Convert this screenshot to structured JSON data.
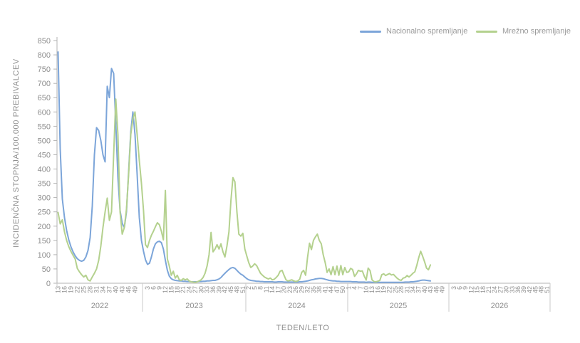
{
  "chart_data": {
    "type": "line",
    "title": "",
    "legend_position": "top-right",
    "grid": false,
    "y_axis": {
      "title": "INCIDENČNA STOPNJA/100.000 PREBIVALCEV",
      "min": 0,
      "max": 850,
      "tick_step": 50,
      "ticks": [
        0,
        50,
        100,
        150,
        200,
        250,
        300,
        350,
        400,
        450,
        500,
        550,
        600,
        650,
        700,
        750,
        800,
        850
      ]
    },
    "x_axis": {
      "title": "TEDEN/LETO",
      "unit": "week",
      "years": [
        {
          "label": "2022",
          "first_week": 13,
          "last_week": 52,
          "ticks": [
            13,
            16,
            19,
            22,
            25,
            28,
            31,
            34,
            37,
            40,
            43,
            46,
            49
          ]
        },
        {
          "label": "2023",
          "first_week": 1,
          "last_week": 52,
          "ticks": [
            3,
            6,
            9,
            12,
            15,
            18,
            21,
            24,
            27,
            30,
            33,
            36,
            39,
            42,
            45,
            48,
            51
          ]
        },
        {
          "label": "2024",
          "first_week": 1,
          "last_week": 52,
          "ticks": [
            2,
            5,
            8,
            11,
            14,
            17,
            20,
            23,
            26,
            29,
            32,
            35,
            38,
            41,
            44,
            47,
            50
          ]
        },
        {
          "label": "2025",
          "first_week": 1,
          "last_week": 52,
          "ticks": [
            1,
            4,
            7,
            10,
            13,
            16,
            19,
            22,
            25,
            28,
            31,
            34,
            37,
            40,
            43,
            46,
            49
          ]
        },
        {
          "label": "2026",
          "first_week": 1,
          "last_week": 52,
          "ticks": [
            3,
            6,
            9,
            12,
            15,
            18,
            21,
            24,
            27,
            30,
            33,
            36,
            39,
            42,
            45,
            48,
            51
          ]
        }
      ]
    },
    "series": [
      {
        "name": "Nacionalno spremljanje",
        "color": "#7CA5D9",
        "data": [
          {
            "year": "2022",
            "first_week": 13,
            "values": [
              810,
              470,
              295,
              230,
              185,
              152,
              128,
              110,
              96,
              86,
              80,
              77,
              80,
              92,
              115,
              160,
              270,
              450,
              545,
              535,
              500,
              450,
              425,
              690,
              650,
              752,
              735,
              560,
              370,
              255,
              210,
              195,
              250,
              390,
              530,
              600,
              520,
              380,
              230,
              150
            ]
          },
          {
            "year": "2023",
            "first_week": 1,
            "values": [
              112,
              82,
              66,
              70,
              92,
              120,
              138,
              145,
              147,
              142,
              120,
              80,
              45,
              25,
              16,
              12,
              10,
              9,
              8,
              8,
              7,
              7,
              6,
              6,
              5,
              5,
              5,
              5,
              6,
              6,
              7,
              7,
              8,
              8,
              9,
              10,
              10,
              12,
              15,
              20,
              28,
              35,
              42,
              48,
              53,
              55,
              52,
              45,
              38,
              32,
              28,
              22
            ]
          },
          {
            "year": "2024",
            "first_week": 1,
            "values": [
              16,
              12,
              10,
              9,
              8,
              7,
              7,
              6,
              6,
              5,
              5,
              5,
              5,
              5,
              4,
              4,
              5,
              5,
              5,
              4,
              4,
              4,
              4,
              4,
              4,
              4,
              4,
              5,
              5,
              6,
              7,
              8,
              10,
              12,
              13,
              15,
              16,
              17,
              17,
              16,
              14,
              12,
              10,
              9,
              8,
              8,
              7,
              7,
              6,
              6,
              6,
              6
            ]
          },
          {
            "year": "2025",
            "first_week": 1,
            "values": [
              6,
              6,
              5,
              5,
              5,
              4,
              4,
              4,
              4,
              3,
              4,
              4,
              3,
              3,
              3,
              3,
              3,
              3,
              3,
              3,
              3,
              3,
              3,
              3,
              3,
              3,
              3,
              3,
              3,
              4,
              4,
              4,
              5,
              5,
              6,
              7,
              8,
              10,
              11,
              11,
              10,
              9,
              8
            ]
          }
        ]
      },
      {
        "name": "Mrežno spremljanje",
        "color": "#B4D18E",
        "data": [
          {
            "year": "2022",
            "first_week": 13,
            "values": [
              248,
              208,
              222,
              180,
              150,
              128,
              112,
              98,
              85,
              52,
              40,
              30,
              22,
              28,
              12,
              8,
              22,
              35,
              50,
              80,
              130,
              195,
              250,
              298,
              220,
              250,
              450,
              645,
              520,
              250,
              172,
              195,
              260,
              380,
              520,
              575,
              600,
              520,
              430,
              350
            ]
          },
          {
            "year": "2023",
            "first_week": 1,
            "values": [
              255,
              135,
              125,
              150,
              168,
              182,
              198,
              212,
              205,
              182,
              152,
              325,
              85,
              60,
              28,
              42,
              18,
              28,
              12,
              10,
              16,
              12,
              15,
              8,
              5,
              4,
              3,
              5,
              8,
              12,
              20,
              35,
              60,
              100,
              178,
              110,
              120,
              135,
              120,
              138,
              110,
              92,
              130,
              180,
              290,
              370,
              355,
              250,
              172,
              165,
              175,
              120
            ]
          },
          {
            "year": "2024",
            "first_week": 1,
            "values": [
              95,
              72,
              55,
              60,
              68,
              62,
              48,
              35,
              28,
              22,
              18,
              15,
              18,
              12,
              14,
              20,
              28,
              42,
              45,
              28,
              12,
              8,
              10,
              12,
              8,
              6,
              8,
              14,
              38,
              45,
              28,
              90,
              140,
              118,
              150,
              162,
              172,
              150,
              138,
              100,
              72,
              38,
              50,
              30,
              58,
              30,
              60,
              28,
              62,
              30,
              55,
              38
            ]
          },
          {
            "year": "2025",
            "first_week": 1,
            "values": [
              40,
              52,
              48,
              24,
              33,
              45,
              42,
              43,
              25,
              11,
              53,
              44,
              12,
              6,
              5,
              7,
              10,
              30,
              33,
              27,
              31,
              34,
              29,
              31,
              24,
              17,
              12,
              10,
              18,
              20,
              27,
              22,
              28,
              35,
              40,
              62,
              90,
              112,
              95,
              75,
              53,
              47,
              64
            ]
          }
        ]
      }
    ]
  }
}
